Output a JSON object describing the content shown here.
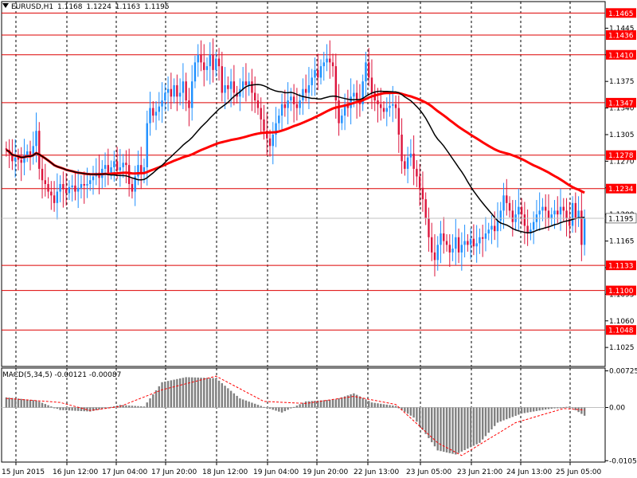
{
  "header": {
    "symbol": "EURUSD,H1",
    "open": "1.1168",
    "high": "1.1224",
    "low": "1.1163",
    "close": "1.1195"
  },
  "macd_header": {
    "label": "MACD(5,34,5)",
    "main": "-0.00121",
    "signal": "-0.00087"
  },
  "colors": {
    "background": "#ffffff",
    "grid": "#000000",
    "bull": "#1e90ff",
    "bear": "#dc143c",
    "level_line": "#dd0000",
    "level_label_bg": "#ff0000",
    "ma_fast": "#000000",
    "ma_slow": "#ff0000",
    "macd_hist": "#808080",
    "macd_signal": "#ff0000"
  },
  "chart_data": [
    {
      "type": "candlestick",
      "title": "EURUSD,H1",
      "ylim": [
        1.1,
        1.148
      ],
      "y_ticks": [
        "1.1025",
        "1.1060",
        "1.1095",
        "1.1130",
        "1.1165",
        "1.1200",
        "1.1235",
        "1.1270",
        "1.1305",
        "1.1340",
        "1.1375",
        "1.1410",
        "1.1445"
      ],
      "x_labels": [
        "15 Jun 2015",
        "16 Jun 12:00",
        "17 Jun 04:00",
        "17 Jun 20:00",
        "18 Jun 12:00",
        "19 Jun 04:00",
        "19 Jun 20:00",
        "22 Jun 13:00",
        "23 Jun 05:00",
        "23 Jun 21:00",
        "24 Jun 13:00",
        "25 Jun 05:00"
      ],
      "horizontal_levels": [
        "1.1465",
        "1.1436",
        "1.1410",
        "1.1347",
        "1.1278",
        "1.1234",
        "1.1133",
        "1.1100",
        "1.1048"
      ],
      "current_price": "1.1195",
      "closes": [
        1.1285,
        1.128,
        1.127,
        1.1275,
        1.1272,
        1.1268,
        1.1278,
        1.1283,
        1.1277,
        1.129,
        1.131,
        1.126,
        1.1245,
        1.124,
        1.123,
        1.1225,
        1.1215,
        1.123,
        1.124,
        1.1233,
        1.1228,
        1.1236,
        1.1238,
        1.123,
        1.1235,
        1.124,
        1.1238,
        1.124,
        1.1245,
        1.125,
        1.1255,
        1.1248,
        1.126,
        1.1265,
        1.1255,
        1.1262,
        1.127,
        1.1258,
        1.1262,
        1.1268,
        1.1265,
        1.124,
        1.123,
        1.125,
        1.1265,
        1.1255,
        1.1262,
        1.132,
        1.134,
        1.133,
        1.1335,
        1.1342,
        1.135,
        1.136,
        1.1365,
        1.1355,
        1.137,
        1.1355,
        1.136,
        1.1375,
        1.135,
        1.134,
        1.1375,
        1.14,
        1.141,
        1.14,
        1.139,
        1.1395,
        1.141,
        1.139,
        1.1405,
        1.1395,
        1.136,
        1.137,
        1.1365,
        1.1375,
        1.136,
        1.1355,
        1.1365,
        1.1375,
        1.137,
        1.1375,
        1.136,
        1.135,
        1.134,
        1.1325,
        1.131,
        1.13,
        1.129,
        1.1305,
        1.132,
        1.133,
        1.1345,
        1.134,
        1.135,
        1.1355,
        1.1345,
        1.134,
        1.135,
        1.1365,
        1.136,
        1.137,
        1.138,
        1.139,
        1.138,
        1.1395,
        1.14,
        1.1405,
        1.14,
        1.1395,
        1.135,
        1.132,
        1.133,
        1.1345,
        1.134,
        1.1355,
        1.136,
        1.135,
        1.1345,
        1.1375,
        1.14,
        1.138,
        1.136,
        1.135,
        1.1345,
        1.134,
        1.1335,
        1.134,
        1.1343,
        1.1345,
        1.134,
        1.1305,
        1.127,
        1.126,
        1.1275,
        1.128,
        1.126,
        1.125,
        1.1235,
        1.122,
        1.1195,
        1.117,
        1.115,
        1.114,
        1.116,
        1.1175,
        1.1165,
        1.116,
        1.115,
        1.1155,
        1.117,
        1.115,
        1.116,
        1.1165,
        1.116,
        1.1168,
        1.1158,
        1.1162,
        1.117,
        1.1168,
        1.1175,
        1.118,
        1.1185,
        1.1178,
        1.1192,
        1.1205,
        1.1225,
        1.1215,
        1.1205,
        1.119,
        1.12,
        1.121,
        1.12,
        1.1185,
        1.1175,
        1.118,
        1.119,
        1.12,
        1.1205,
        1.121,
        1.1205,
        1.1195,
        1.12,
        1.1205,
        1.12,
        1.121,
        1.1205,
        1.1195,
        1.1185,
        1.1215,
        1.1195,
        1.1205,
        1.116,
        1.1195
      ]
    },
    {
      "type": "bar",
      "title": "MACD(5,34,5) -0.00121 -0.00087",
      "ylim": [
        -0.0108,
        0.0078
      ],
      "y_ticks": [
        "0.00725",
        "0.00",
        "-0.01053"
      ],
      "histogram_anchor_points": [
        [
          0,
          0.002
        ],
        [
          10,
          0.0014
        ],
        [
          18,
          -0.0005
        ],
        [
          28,
          -0.0008
        ],
        [
          38,
          0.0005
        ],
        [
          46,
          0.0002
        ],
        [
          52,
          0.005
        ],
        [
          60,
          0.006
        ],
        [
          70,
          0.0058
        ],
        [
          78,
          0.0018
        ],
        [
          86,
          0.0001
        ],
        [
          92,
          -0.001
        ],
        [
          100,
          0.0012
        ],
        [
          110,
          0.0016
        ],
        [
          116,
          0.0028
        ],
        [
          122,
          0.001
        ],
        [
          130,
          0.0003
        ],
        [
          136,
          -0.002
        ],
        [
          144,
          -0.0085
        ],
        [
          150,
          -0.0093
        ],
        [
          158,
          -0.007
        ],
        [
          164,
          -0.003
        ],
        [
          172,
          -0.0012
        ],
        [
          180,
          -0.0004
        ],
        [
          188,
          0.0002
        ],
        [
          194,
          -0.002
        ],
        [
          200,
          -0.0015
        ]
      ],
      "signal_anchor_points": [
        [
          0,
          0.0018
        ],
        [
          18,
          0.001
        ],
        [
          28,
          -0.0006
        ],
        [
          38,
          0.0002
        ],
        [
          52,
          0.0035
        ],
        [
          70,
          0.0062
        ],
        [
          86,
          0.0012
        ],
        [
          100,
          0.0008
        ],
        [
          116,
          0.0022
        ],
        [
          130,
          0.0006
        ],
        [
          144,
          -0.007
        ],
        [
          152,
          -0.0095
        ],
        [
          170,
          -0.003
        ],
        [
          186,
          -0.0002
        ],
        [
          200,
          -0.0008
        ]
      ]
    }
  ]
}
